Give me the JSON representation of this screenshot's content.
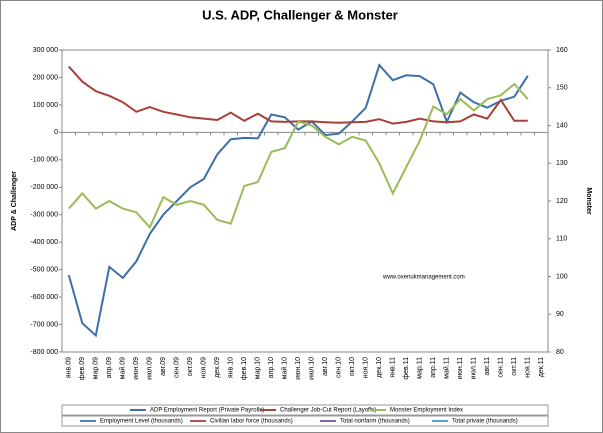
{
  "chart_data": {
    "type": "line",
    "title": "U.S. ADP, Challenger & Monster",
    "y_label": "ADP & Challenger",
    "y2_label": "Monster",
    "annotation": "www.oxenukmanagement.com",
    "categories": [
      "янв.09",
      "фев.09",
      "мар.09",
      "апр.09",
      "май.09",
      "июн.09",
      "июл.09",
      "авг.09",
      "сен.09",
      "окт.09",
      "ноя.09",
      "дек.09",
      "янв.10",
      "фев.10",
      "мар.10",
      "апр.10",
      "май.10",
      "июн.10",
      "июл.10",
      "авг.10",
      "сен.10",
      "окт.10",
      "ноя.10",
      "дек.10",
      "янв.11",
      "фев.11",
      "мар.11",
      "апр.11",
      "май.11",
      "июн.11",
      "июл.11",
      "авг.11",
      "сен.11",
      "окт.11",
      "ноя.11",
      "дек.11"
    ],
    "series": [
      {
        "name": "ADP Employment Report (Private Payrolls)",
        "color": "#3d6fa8",
        "values": [
          -520000,
          -695000,
          -740000,
          -490000,
          -530000,
          -470000,
          -370000,
          -300000,
          -250000,
          -200000,
          -170000,
          -80000,
          -25000,
          -20000,
          -22000,
          65000,
          55000,
          10000,
          40000,
          -10000,
          -5000,
          40000,
          90000,
          245000,
          190000,
          208000,
          205000,
          175000,
          38000,
          145000,
          110000,
          90000,
          115000,
          130000,
          206000,
          null
        ]
      },
      {
        "name": "Challenger Job-Cut Report (Layoffs)",
        "color": "#a8403a",
        "values": [
          240000,
          185000,
          150000,
          133000,
          110000,
          75000,
          92000,
          75000,
          65000,
          55000,
          50000,
          45000,
          72000,
          42000,
          68000,
          40000,
          38000,
          40000,
          40000,
          37000,
          35000,
          37000,
          38000,
          48000,
          32000,
          38000,
          50000,
          40000,
          37000,
          40000,
          65000,
          50000,
          118000,
          42000,
          42000,
          null
        ]
      },
      {
        "name": "Monster Employment Index",
        "color": "#9bbb59",
        "axis": "y2",
        "values": [
          118,
          122,
          118,
          120,
          118,
          117,
          113,
          121,
          119,
          120,
          119,
          115,
          114,
          124,
          125,
          133,
          134,
          141,
          140,
          137,
          135,
          137,
          136,
          130,
          122,
          129,
          136,
          145,
          143,
          147,
          144,
          147,
          148,
          151,
          147,
          null
        ]
      }
    ],
    "legend2": [
      {
        "name": "Employment Level (thousands)",
        "color": "#4f81bd"
      },
      {
        "name": "Civilian labor force (thousands)",
        "color": "#c0504d"
      },
      {
        "name": "Total nonfarm (thousands)",
        "color": "#8064a2"
      },
      {
        "name": "Total private (thousands)",
        "color": "#4bacc6"
      }
    ],
    "ylim": [
      -800000,
      300000
    ],
    "yticks": [
      {
        "value": -800000,
        "label": "-800 000"
      },
      {
        "value": -700000,
        "label": "-700 000"
      },
      {
        "value": -600000,
        "label": "-600 000"
      },
      {
        "value": -500000,
        "label": "-500 000"
      },
      {
        "value": -400000,
        "label": "-400 000"
      },
      {
        "value": -300000,
        "label": "-300 000"
      },
      {
        "value": -200000,
        "label": "-200 000"
      },
      {
        "value": -100000,
        "label": "-100 000"
      },
      0,
      {
        "value": 100000,
        "label": "100 000"
      },
      {
        "value": 200000,
        "label": "200 000"
      },
      {
        "value": 300000,
        "label": "300 000"
      }
    ],
    "y2lim": [
      80,
      160
    ],
    "y2ticks": [
      80,
      90,
      100,
      110,
      120,
      130,
      140,
      150,
      160
    ]
  }
}
